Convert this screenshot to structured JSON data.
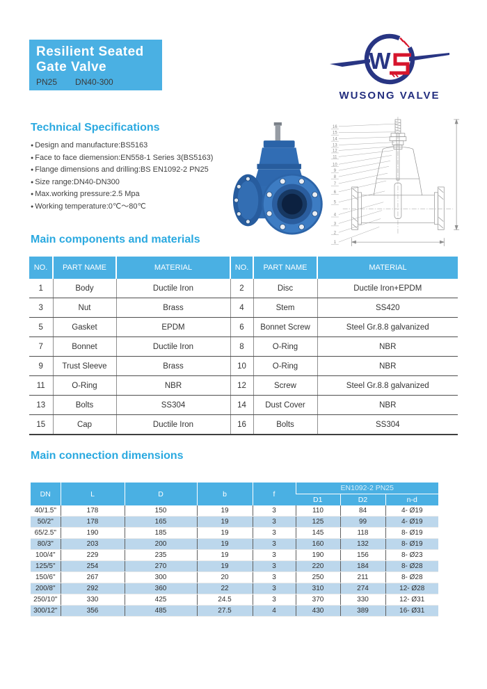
{
  "header": {
    "title_line1": "Resilient Seated",
    "title_line2": "Gate Valve",
    "subtitle_pn": "PN25",
    "subtitle_dn": "DN40-300",
    "brand": "WUSONG VALVE",
    "logo_monogram": "W"
  },
  "colors": {
    "accent_blue": "#4AB0E3",
    "section_title_blue": "#2AA9E0",
    "brand_navy": "#232E7F",
    "brand_red": "#D6152C",
    "table_stripe_blue": "#BCD7EC",
    "valve_blue": "#2F6AB0"
  },
  "tech_specs": {
    "title": "Technical Specifications",
    "items": [
      "Design and manufacture:BS5163",
      "Face to face diemension:EN558-1 Series 3(BS5163)",
      "Flange dimensions and drilling:BS EN1092-2 PN25",
      "Size range:DN40-DN300",
      "Max.working pressure:2.5 Mpa",
      "Working temperature:0℃～80℃"
    ]
  },
  "components": {
    "title": "Main components and materials",
    "headers": [
      "NO.",
      "PART NAME",
      "MATERIAL",
      "NO.",
      "PART NAME",
      "MATERIAL"
    ],
    "rows": [
      [
        "1",
        "Body",
        "Ductile Iron",
        "2",
        "Disc",
        "Ductile Iron+EPDM"
      ],
      [
        "3",
        "Nut",
        "Brass",
        "4",
        "Stem",
        "SS420"
      ],
      [
        "5",
        "Gasket",
        "EPDM",
        "6",
        "Bonnet Screw",
        "Steel Gr.8.8 galvanized"
      ],
      [
        "7",
        "Bonnet",
        "Ductile Iron",
        "8",
        "O-Ring",
        "NBR"
      ],
      [
        "9",
        "Trust Sleeve",
        "Brass",
        "10",
        "O-Ring",
        "NBR"
      ],
      [
        "11",
        "O-Ring",
        "NBR",
        "12",
        "Screw",
        "Steel Gr.8.8 galvanized"
      ],
      [
        "13",
        "Bolts",
        "SS304",
        "14",
        "Dust Cover",
        "NBR"
      ],
      [
        "15",
        "Cap",
        "Ductile Iron",
        "16",
        "Bolts",
        "SS304"
      ]
    ]
  },
  "dimensions": {
    "title": "Main connection dimensions",
    "headers": [
      "DN",
      "L",
      "D",
      "b",
      "f"
    ],
    "group_header": "EN1092-2 PN25",
    "sub_headers": [
      "D1",
      "D2",
      "n-d"
    ],
    "rows": [
      [
        "40/1.5\"",
        "178",
        "150",
        "19",
        "3",
        "110",
        "84",
        "4- Ø19"
      ],
      [
        "50/2\"",
        "178",
        "165",
        "19",
        "3",
        "125",
        "99",
        "4- Ø19"
      ],
      [
        "65/2.5\"",
        "190",
        "185",
        "19",
        "3",
        "145",
        "118",
        "8- Ø19"
      ],
      [
        "80/3\"",
        "203",
        "200",
        "19",
        "3",
        "160",
        "132",
        "8- Ø19"
      ],
      [
        "100/4\"",
        "229",
        "235",
        "19",
        "3",
        "190",
        "156",
        "8- Ø23"
      ],
      [
        "125/5\"",
        "254",
        "270",
        "19",
        "3",
        "220",
        "184",
        "8- Ø28"
      ],
      [
        "150/6\"",
        "267",
        "300",
        "20",
        "3",
        "250",
        "211",
        "8- Ø28"
      ],
      [
        "200/8\"",
        "292",
        "360",
        "22",
        "3",
        "310",
        "274",
        "12- Ø28"
      ],
      [
        "250/10\"",
        "330",
        "425",
        "24.5",
        "3",
        "370",
        "330",
        "12- Ø31"
      ],
      [
        "300/12\"",
        "356",
        "485",
        "27.5",
        "4",
        "430",
        "389",
        "16- Ø31"
      ]
    ]
  },
  "drawing": {
    "callouts": [
      "16",
      "15",
      "14",
      "13",
      "12",
      "11",
      "10",
      "9",
      "8",
      "7",
      "6",
      "5",
      "4",
      "3",
      "2",
      "1"
    ]
  }
}
